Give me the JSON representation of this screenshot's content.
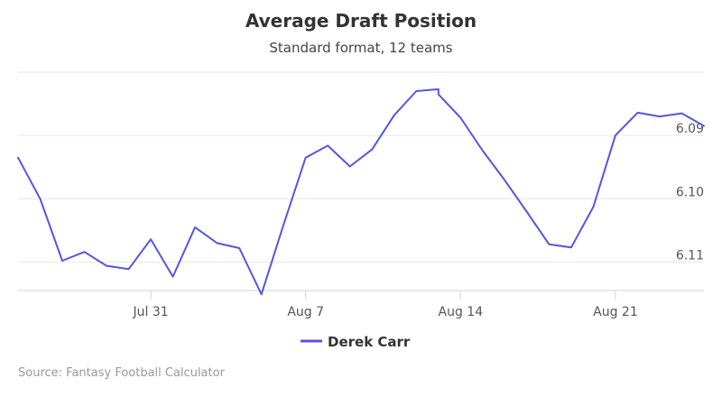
{
  "chart_data": {
    "type": "line",
    "title": "Average Draft Position",
    "subtitle": "Standard format, 12 teams",
    "credit": "Source: Fantasy Football Calculator",
    "x_ticks": [
      "Jul 31",
      "Aug 7",
      "Aug 14",
      "Aug 21"
    ],
    "y_ticks": [
      "6.09",
      "6.10",
      "6.11"
    ],
    "y_tick_values": [
      6.09,
      6.1,
      6.11
    ],
    "y_axis": "right",
    "y_reversed": true,
    "ylim": [
      6.08,
      6.1145
    ],
    "grid": true,
    "legend_position": "bottom-center",
    "series": [
      {
        "name": "Derek Carr",
        "color": "#5555e0",
        "x": [
          "Jul 25",
          "Jul 26",
          "Jul 27",
          "Jul 28",
          "Jul 29",
          "Jul 30",
          "Jul 31",
          "Aug 1",
          "Aug 2",
          "Aug 3",
          "Aug 4",
          "Aug 5",
          "Aug 6",
          "Aug 7",
          "Aug 8",
          "Aug 9",
          "Aug 10",
          "Aug 11",
          "Aug 12",
          "Aug 13",
          "Aug 13",
          "Aug 14",
          "Aug 15",
          "Aug 16",
          "Aug 17",
          "Aug 18",
          "Aug 19",
          "Aug 20",
          "Aug 21",
          "Aug 22",
          "Aug 23",
          "Aug 24",
          "Aug 25"
        ],
        "values": [
          6.0935,
          6.1,
          6.1098,
          6.1084,
          6.1106,
          6.1111,
          6.1064,
          6.1123,
          6.1045,
          6.107,
          6.1078,
          6.1151,
          6.1041,
          6.0935,
          6.0916,
          6.0949,
          6.0922,
          6.0868,
          6.083,
          6.0827,
          6.0835,
          6.0872,
          6.0924,
          6.0971,
          6.1021,
          6.1072,
          6.1077,
          6.1013,
          6.09,
          6.0864,
          6.087,
          6.0865,
          6.0885
        ]
      }
    ]
  }
}
